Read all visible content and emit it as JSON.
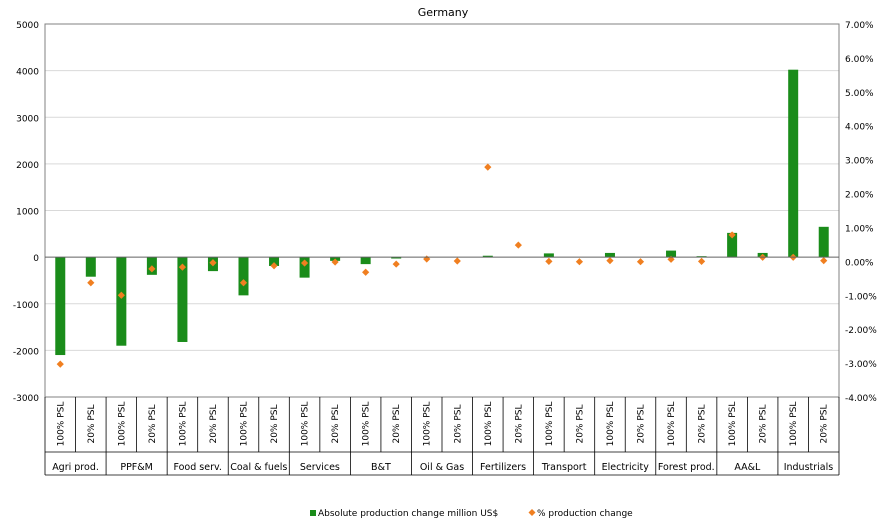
{
  "chart_data": {
    "type": "bar",
    "title": "Germany",
    "colors": {
      "bar": "#1a8c1a",
      "marker": "#f07f20",
      "grid": "#d9d9d9",
      "axis": "#808080"
    },
    "y_left": {
      "min": -3000,
      "max": 5000,
      "step": 1000,
      "ticks": [
        "-3000",
        "-2000",
        "-1000",
        "0",
        "1000",
        "2000",
        "3000",
        "4000",
        "5000"
      ]
    },
    "y_right": {
      "min": -4.0,
      "max": 7.0,
      "step": 1.0,
      "ticks": [
        "-4.00%",
        "-3.00%",
        "-2.00%",
        "-1.00%",
        "0.00%",
        "1.00%",
        "2.00%",
        "3.00%",
        "4.00%",
        "5.00%",
        "6.00%",
        "7.00%"
      ]
    },
    "groups": [
      "Agri prod.",
      "PPF&M",
      "Food serv.",
      "Coal & fuels",
      "Services",
      "B&T",
      "Oil & Gas",
      "Fertilizers",
      "Transport",
      "Electricity",
      "Forest prod.",
      "AA&L",
      "Industrials"
    ],
    "scenarios": [
      "100% PSL",
      "20% PSL"
    ],
    "series": [
      {
        "name": "Absolute production change million US$",
        "kind": "bar",
        "values": [
          -2100,
          -420,
          -1900,
          -380,
          -1820,
          -300,
          -820,
          -190,
          -440,
          -80,
          -150,
          -30,
          0,
          0,
          30,
          0,
          80,
          0,
          90,
          0,
          140,
          20,
          520,
          90,
          4020,
          650
        ]
      },
      {
        "name": "% production change",
        "kind": "marker",
        "values": [
          -3.03,
          -0.63,
          -1.0,
          -0.22,
          -0.17,
          -0.04,
          -0.63,
          -0.13,
          -0.05,
          -0.02,
          -0.32,
          -0.08,
          0.07,
          0.01,
          2.78,
          0.48,
          0.0,
          -0.01,
          0.02,
          -0.01,
          0.06,
          0.0,
          0.78,
          0.12,
          0.12,
          0.02
        ]
      }
    ],
    "legend": {
      "position": "bottom",
      "bar_label": "Absolute production change million US$",
      "marker_label": "% production change"
    },
    "grid": true
  }
}
